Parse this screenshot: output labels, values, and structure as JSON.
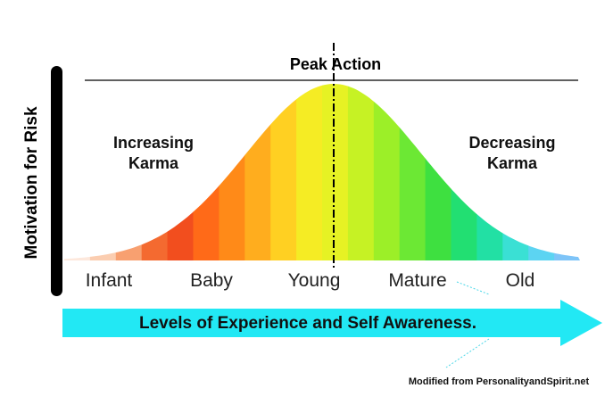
{
  "diagram": {
    "peak_label": "Peak Action",
    "y_axis_label": "Motivation for Risk",
    "left_label": [
      "Increasing",
      "Karma"
    ],
    "right_label": [
      "Decreasing",
      "Karma"
    ],
    "stages": [
      "Infant",
      "Baby",
      "Young",
      "Mature",
      "Old"
    ],
    "arrow_label": "Levels of Experience and Self Awareness.",
    "credit": "Modified from PersonalityandSpirit.net"
  }
}
